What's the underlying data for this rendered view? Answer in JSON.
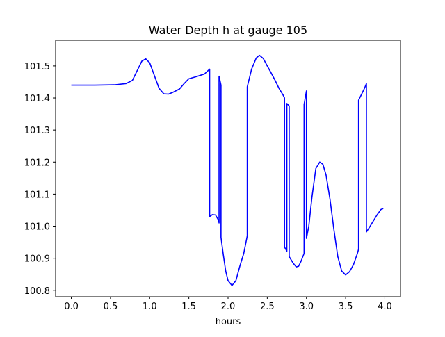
{
  "chart_data": {
    "type": "line",
    "title": "Water Depth h at gauge 105",
    "xlabel": "hours",
    "ylabel": "",
    "xlim": [
      -0.2,
      4.2
    ],
    "ylim": [
      100.78,
      101.58
    ],
    "grid": false,
    "xticks": [
      0.0,
      0.5,
      1.0,
      1.5,
      2.0,
      2.5,
      3.0,
      3.5,
      4.0
    ],
    "xtick_labels": [
      "0.0",
      "0.5",
      "1.0",
      "1.5",
      "2.0",
      "2.5",
      "3.0",
      "3.5",
      "4.0"
    ],
    "yticks": [
      100.8,
      100.9,
      101.0,
      101.1,
      101.2,
      101.3,
      101.4,
      101.5
    ],
    "ytick_labels": [
      "100.8",
      "100.9",
      "101.0",
      "101.1",
      "101.2",
      "101.3",
      "101.4",
      "101.5"
    ],
    "series": [
      {
        "color": "#0000ff",
        "points": [
          [
            0.0,
            101.44
          ],
          [
            0.3,
            101.44
          ],
          [
            0.55,
            101.441
          ],
          [
            0.7,
            101.445
          ],
          [
            0.78,
            101.455
          ],
          [
            0.84,
            101.485
          ],
          [
            0.9,
            101.515
          ],
          [
            0.95,
            101.522
          ],
          [
            1.0,
            101.51
          ],
          [
            1.06,
            101.47
          ],
          [
            1.12,
            101.43
          ],
          [
            1.18,
            101.413
          ],
          [
            1.24,
            101.412
          ],
          [
            1.3,
            101.418
          ],
          [
            1.38,
            101.428
          ],
          [
            1.44,
            101.445
          ],
          [
            1.5,
            101.46
          ],
          [
            1.6,
            101.467
          ],
          [
            1.7,
            101.475
          ],
          [
            1.765,
            101.49
          ],
          [
            1.765,
            101.03
          ],
          [
            1.8,
            101.036
          ],
          [
            1.84,
            101.035
          ],
          [
            1.88,
            101.018
          ],
          [
            1.885,
            101.01
          ],
          [
            1.885,
            101.468
          ],
          [
            1.91,
            101.44
          ],
          [
            1.91,
            100.965
          ],
          [
            1.94,
            100.91
          ],
          [
            1.97,
            100.86
          ],
          [
            2.0,
            100.83
          ],
          [
            2.05,
            100.815
          ],
          [
            2.1,
            100.83
          ],
          [
            2.15,
            100.875
          ],
          [
            2.2,
            100.915
          ],
          [
            2.245,
            100.97
          ],
          [
            2.245,
            101.435
          ],
          [
            2.3,
            101.49
          ],
          [
            2.36,
            101.525
          ],
          [
            2.4,
            101.533
          ],
          [
            2.45,
            101.523
          ],
          [
            2.5,
            101.5
          ],
          [
            2.55,
            101.478
          ],
          [
            2.6,
            101.455
          ],
          [
            2.65,
            101.43
          ],
          [
            2.7,
            101.41
          ],
          [
            2.72,
            101.4
          ],
          [
            2.72,
            100.935
          ],
          [
            2.75,
            100.922
          ],
          [
            2.75,
            101.383
          ],
          [
            2.78,
            101.375
          ],
          [
            2.78,
            100.905
          ],
          [
            2.83,
            100.885
          ],
          [
            2.87,
            100.873
          ],
          [
            2.9,
            100.875
          ],
          [
            2.93,
            100.89
          ],
          [
            2.97,
            100.915
          ],
          [
            2.97,
            101.38
          ],
          [
            3.0,
            101.422
          ],
          [
            3.0,
            100.962
          ],
          [
            3.03,
            101.0
          ],
          [
            3.07,
            101.09
          ],
          [
            3.12,
            101.18
          ],
          [
            3.17,
            101.2
          ],
          [
            3.21,
            101.193
          ],
          [
            3.25,
            101.16
          ],
          [
            3.3,
            101.085
          ],
          [
            3.35,
            100.99
          ],
          [
            3.4,
            100.905
          ],
          [
            3.45,
            100.86
          ],
          [
            3.5,
            100.848
          ],
          [
            3.55,
            100.858
          ],
          [
            3.6,
            100.88
          ],
          [
            3.65,
            100.915
          ],
          [
            3.665,
            100.928
          ],
          [
            3.665,
            101.393
          ],
          [
            3.7,
            101.41
          ],
          [
            3.74,
            101.43
          ],
          [
            3.765,
            101.445
          ],
          [
            3.765,
            100.982
          ],
          [
            3.8,
            100.995
          ],
          [
            3.85,
            101.015
          ],
          [
            3.9,
            101.035
          ],
          [
            3.95,
            101.052
          ],
          [
            3.98,
            101.055
          ]
        ]
      }
    ]
  }
}
